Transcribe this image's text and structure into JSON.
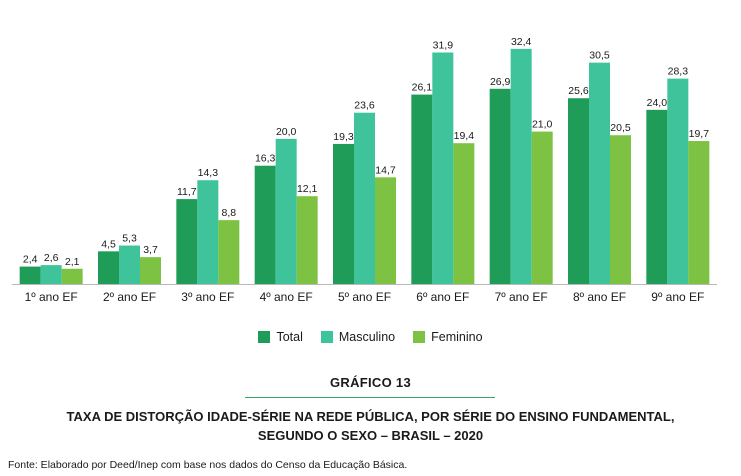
{
  "chart_data": {
    "type": "bar",
    "categories": [
      "1º ano EF",
      "2º ano EF",
      "3º ano EF",
      "4º ano EF",
      "5º ano EF",
      "6º ano EF",
      "7º ano EF",
      "8º ano EF",
      "9º ano EF"
    ],
    "series": [
      {
        "name": "Total",
        "color": "#1f9c57",
        "values": [
          2.4,
          4.5,
          11.7,
          16.3,
          19.3,
          26.1,
          26.9,
          25.6,
          24.0
        ],
        "labels": [
          "2,4",
          "4,5",
          "11,7",
          "16,3",
          "19,3",
          "26,1",
          "26,9",
          "25,6",
          "24,0"
        ]
      },
      {
        "name": "Masculino",
        "color": "#3ec39a",
        "values": [
          2.6,
          5.3,
          14.3,
          20.0,
          23.6,
          31.9,
          32.4,
          30.5,
          28.3
        ],
        "labels": [
          "2,6",
          "5,3",
          "14,3",
          "20,0",
          "23,6",
          "31,9",
          "32,4",
          "30,5",
          "28,3"
        ]
      },
      {
        "name": "Feminino",
        "color": "#7dc242",
        "values": [
          2.1,
          3.7,
          8.8,
          12.1,
          14.7,
          19.4,
          21.0,
          20.5,
          19.7
        ],
        "labels": [
          "2,1",
          "3,7",
          "8,8",
          "12,1",
          "14,7",
          "19,4",
          "21,0",
          "20,5",
          "19,7"
        ]
      }
    ],
    "ylim": [
      0,
      35
    ],
    "grid": false,
    "legend_position": "bottom-center"
  },
  "figure": {
    "number": "GRÁFICO 13",
    "title_line1": "TAXA DE DISTORÇÃO IDADE-SÉRIE NA REDE PÚBLICA, POR SÉRIE DO ENSINO FUNDAMENTAL,",
    "title_line2": "SEGUNDO O SEXO – BRASIL – 2020",
    "source": "Fonte: Elaborado por Deed/Inep com base nos dados do Censo da Educação Básica.",
    "rule_color": "#3aa76a"
  }
}
